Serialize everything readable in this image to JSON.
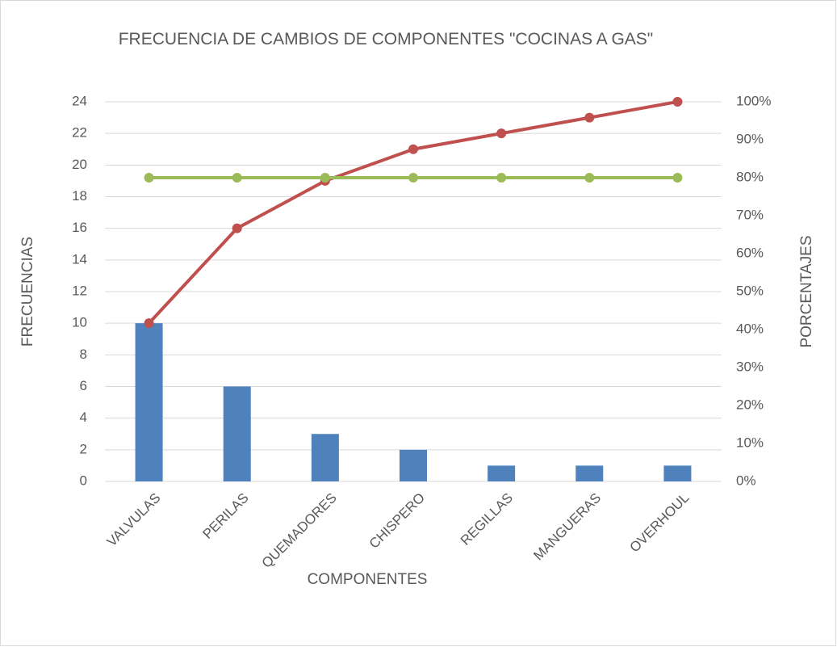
{
  "chart_data": {
    "type": "pareto",
    "title": "FRECUENCIA DE CAMBIOS DE COMPONENTES \"COCINAS A GAS\"",
    "xlabel": "COMPONENTES",
    "ylabel": "FRECUENCIAS",
    "y2label": "PORCENTAJES",
    "categories": [
      "VALVULAS",
      "PERILAS",
      "QUEMADORES",
      "CHISPERO",
      "REGILLAS",
      "MANGUERAS",
      "OVERHOUL"
    ],
    "series": [
      {
        "type": "bar",
        "color": "#4f81bd",
        "values": [
          10,
          6,
          3,
          2,
          1,
          1,
          1
        ]
      },
      {
        "type": "line",
        "axis": "y2",
        "color": "#c0504d",
        "values": [
          41.67,
          66.67,
          79.17,
          87.5,
          91.67,
          95.83,
          100
        ]
      },
      {
        "type": "line",
        "axis": "y2",
        "color": "#9bbb59",
        "values": [
          80,
          80,
          80,
          80,
          80,
          80,
          80
        ]
      }
    ],
    "ylim": [
      0,
      24
    ],
    "yticks": [
      0,
      2,
      4,
      6,
      8,
      10,
      12,
      14,
      16,
      18,
      20,
      22,
      24
    ],
    "y2lim": [
      0,
      100
    ],
    "y2ticks": [
      {
        "value": 0,
        "label": "0%"
      },
      {
        "value": 10,
        "label": "10%"
      },
      {
        "value": 20,
        "label": "20%"
      },
      {
        "value": 30,
        "label": "30%"
      },
      {
        "value": 40,
        "label": "40%"
      },
      {
        "value": 50,
        "label": "50%"
      },
      {
        "value": 60,
        "label": "60%"
      },
      {
        "value": 70,
        "label": "70%"
      },
      {
        "value": 80,
        "label": "80%"
      },
      {
        "value": 90,
        "label": "90%"
      },
      {
        "value": 100,
        "label": "100%"
      }
    ],
    "grid": true
  }
}
